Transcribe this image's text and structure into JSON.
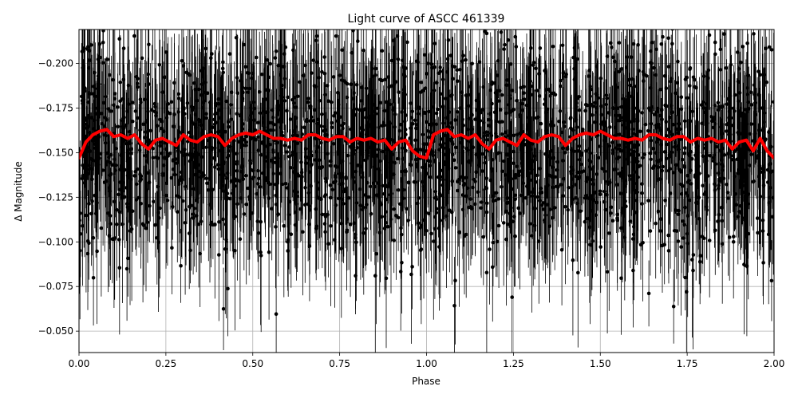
{
  "chart_data": {
    "type": "scatter",
    "title": "Light curve of ASCC 461339",
    "xlabel": "Phase",
    "ylabel": "Δ Magnitude",
    "xlim": [
      0.0,
      2.0
    ],
    "ylim": [
      -0.038,
      -0.219
    ],
    "y_inverted": true,
    "grid": true,
    "xticks": [
      0.0,
      0.25,
      0.5,
      0.75,
      1.0,
      1.25,
      1.5,
      1.75,
      2.0
    ],
    "xtick_labels": [
      "0.00",
      "0.25",
      "0.50",
      "0.75",
      "1.00",
      "1.25",
      "1.50",
      "1.75",
      "2.00"
    ],
    "yticks": [
      -0.2,
      -0.175,
      -0.15,
      -0.125,
      -0.1,
      -0.075,
      -0.05
    ],
    "ytick_labels": [
      "−0.200",
      "−0.175",
      "−0.150",
      "−0.125",
      "−0.100",
      "−0.075",
      "−0.050"
    ],
    "data_series": {
      "style": "black points with vertical error bars",
      "color": "#000000",
      "n_points_estimate": 2400,
      "center": -0.153,
      "scatter_sd": 0.03,
      "typical_error": 0.03
    },
    "binned_curve": {
      "color": "#ff0000",
      "x": [
        0.0,
        0.02,
        0.04,
        0.06,
        0.08,
        0.1,
        0.12,
        0.14,
        0.16,
        0.18,
        0.2,
        0.22,
        0.24,
        0.26,
        0.28,
        0.3,
        0.32,
        0.34,
        0.36,
        0.38,
        0.4,
        0.42,
        0.44,
        0.46,
        0.48,
        0.5,
        0.52,
        0.54,
        0.56,
        0.58,
        0.6,
        0.62,
        0.64,
        0.66,
        0.68,
        0.7,
        0.72,
        0.74,
        0.76,
        0.78,
        0.8,
        0.82,
        0.84,
        0.86,
        0.88,
        0.9,
        0.92,
        0.94,
        0.96,
        0.98,
        1.0,
        1.02,
        1.04,
        1.06,
        1.08,
        1.1,
        1.12,
        1.14,
        1.16,
        1.18,
        1.2,
        1.22,
        1.24,
        1.26,
        1.28,
        1.3,
        1.32,
        1.34,
        1.36,
        1.38,
        1.4,
        1.42,
        1.44,
        1.46,
        1.48,
        1.5,
        1.52,
        1.54,
        1.56,
        1.58,
        1.6,
        1.62,
        1.64,
        1.66,
        1.68,
        1.7,
        1.72,
        1.74,
        1.76,
        1.78,
        1.8,
        1.82,
        1.84,
        1.86,
        1.88,
        1.9,
        1.92,
        1.94,
        1.96,
        1.98,
        2.0
      ],
      "y": [
        -0.147,
        -0.156,
        -0.16,
        -0.162,
        -0.163,
        -0.159,
        -0.16,
        -0.158,
        -0.16,
        -0.155,
        -0.152,
        -0.157,
        -0.158,
        -0.156,
        -0.154,
        -0.16,
        -0.157,
        -0.156,
        -0.159,
        -0.16,
        -0.159,
        -0.154,
        -0.158,
        -0.16,
        -0.161,
        -0.16,
        -0.162,
        -0.16,
        -0.158,
        -0.158,
        -0.157,
        -0.158,
        -0.157,
        -0.16,
        -0.16,
        -0.158,
        -0.157,
        -0.159,
        -0.159,
        -0.156,
        -0.158,
        -0.157,
        -0.158,
        -0.156,
        -0.157,
        -0.152,
        -0.156,
        -0.157,
        -0.151,
        -0.148,
        -0.147,
        -0.16,
        -0.162,
        -0.163,
        -0.159,
        -0.16,
        -0.158,
        -0.16,
        -0.155,
        -0.152,
        -0.157,
        -0.158,
        -0.156,
        -0.154,
        -0.16,
        -0.157,
        -0.156,
        -0.159,
        -0.16,
        -0.159,
        -0.154,
        -0.158,
        -0.16,
        -0.161,
        -0.16,
        -0.162,
        -0.16,
        -0.158,
        -0.158,
        -0.157,
        -0.158,
        -0.157,
        -0.16,
        -0.16,
        -0.158,
        -0.157,
        -0.159,
        -0.159,
        -0.156,
        -0.158,
        -0.157,
        -0.158,
        -0.156,
        -0.157,
        -0.152,
        -0.156,
        -0.157,
        -0.151,
        -0.158,
        -0.151,
        -0.147
      ]
    }
  }
}
